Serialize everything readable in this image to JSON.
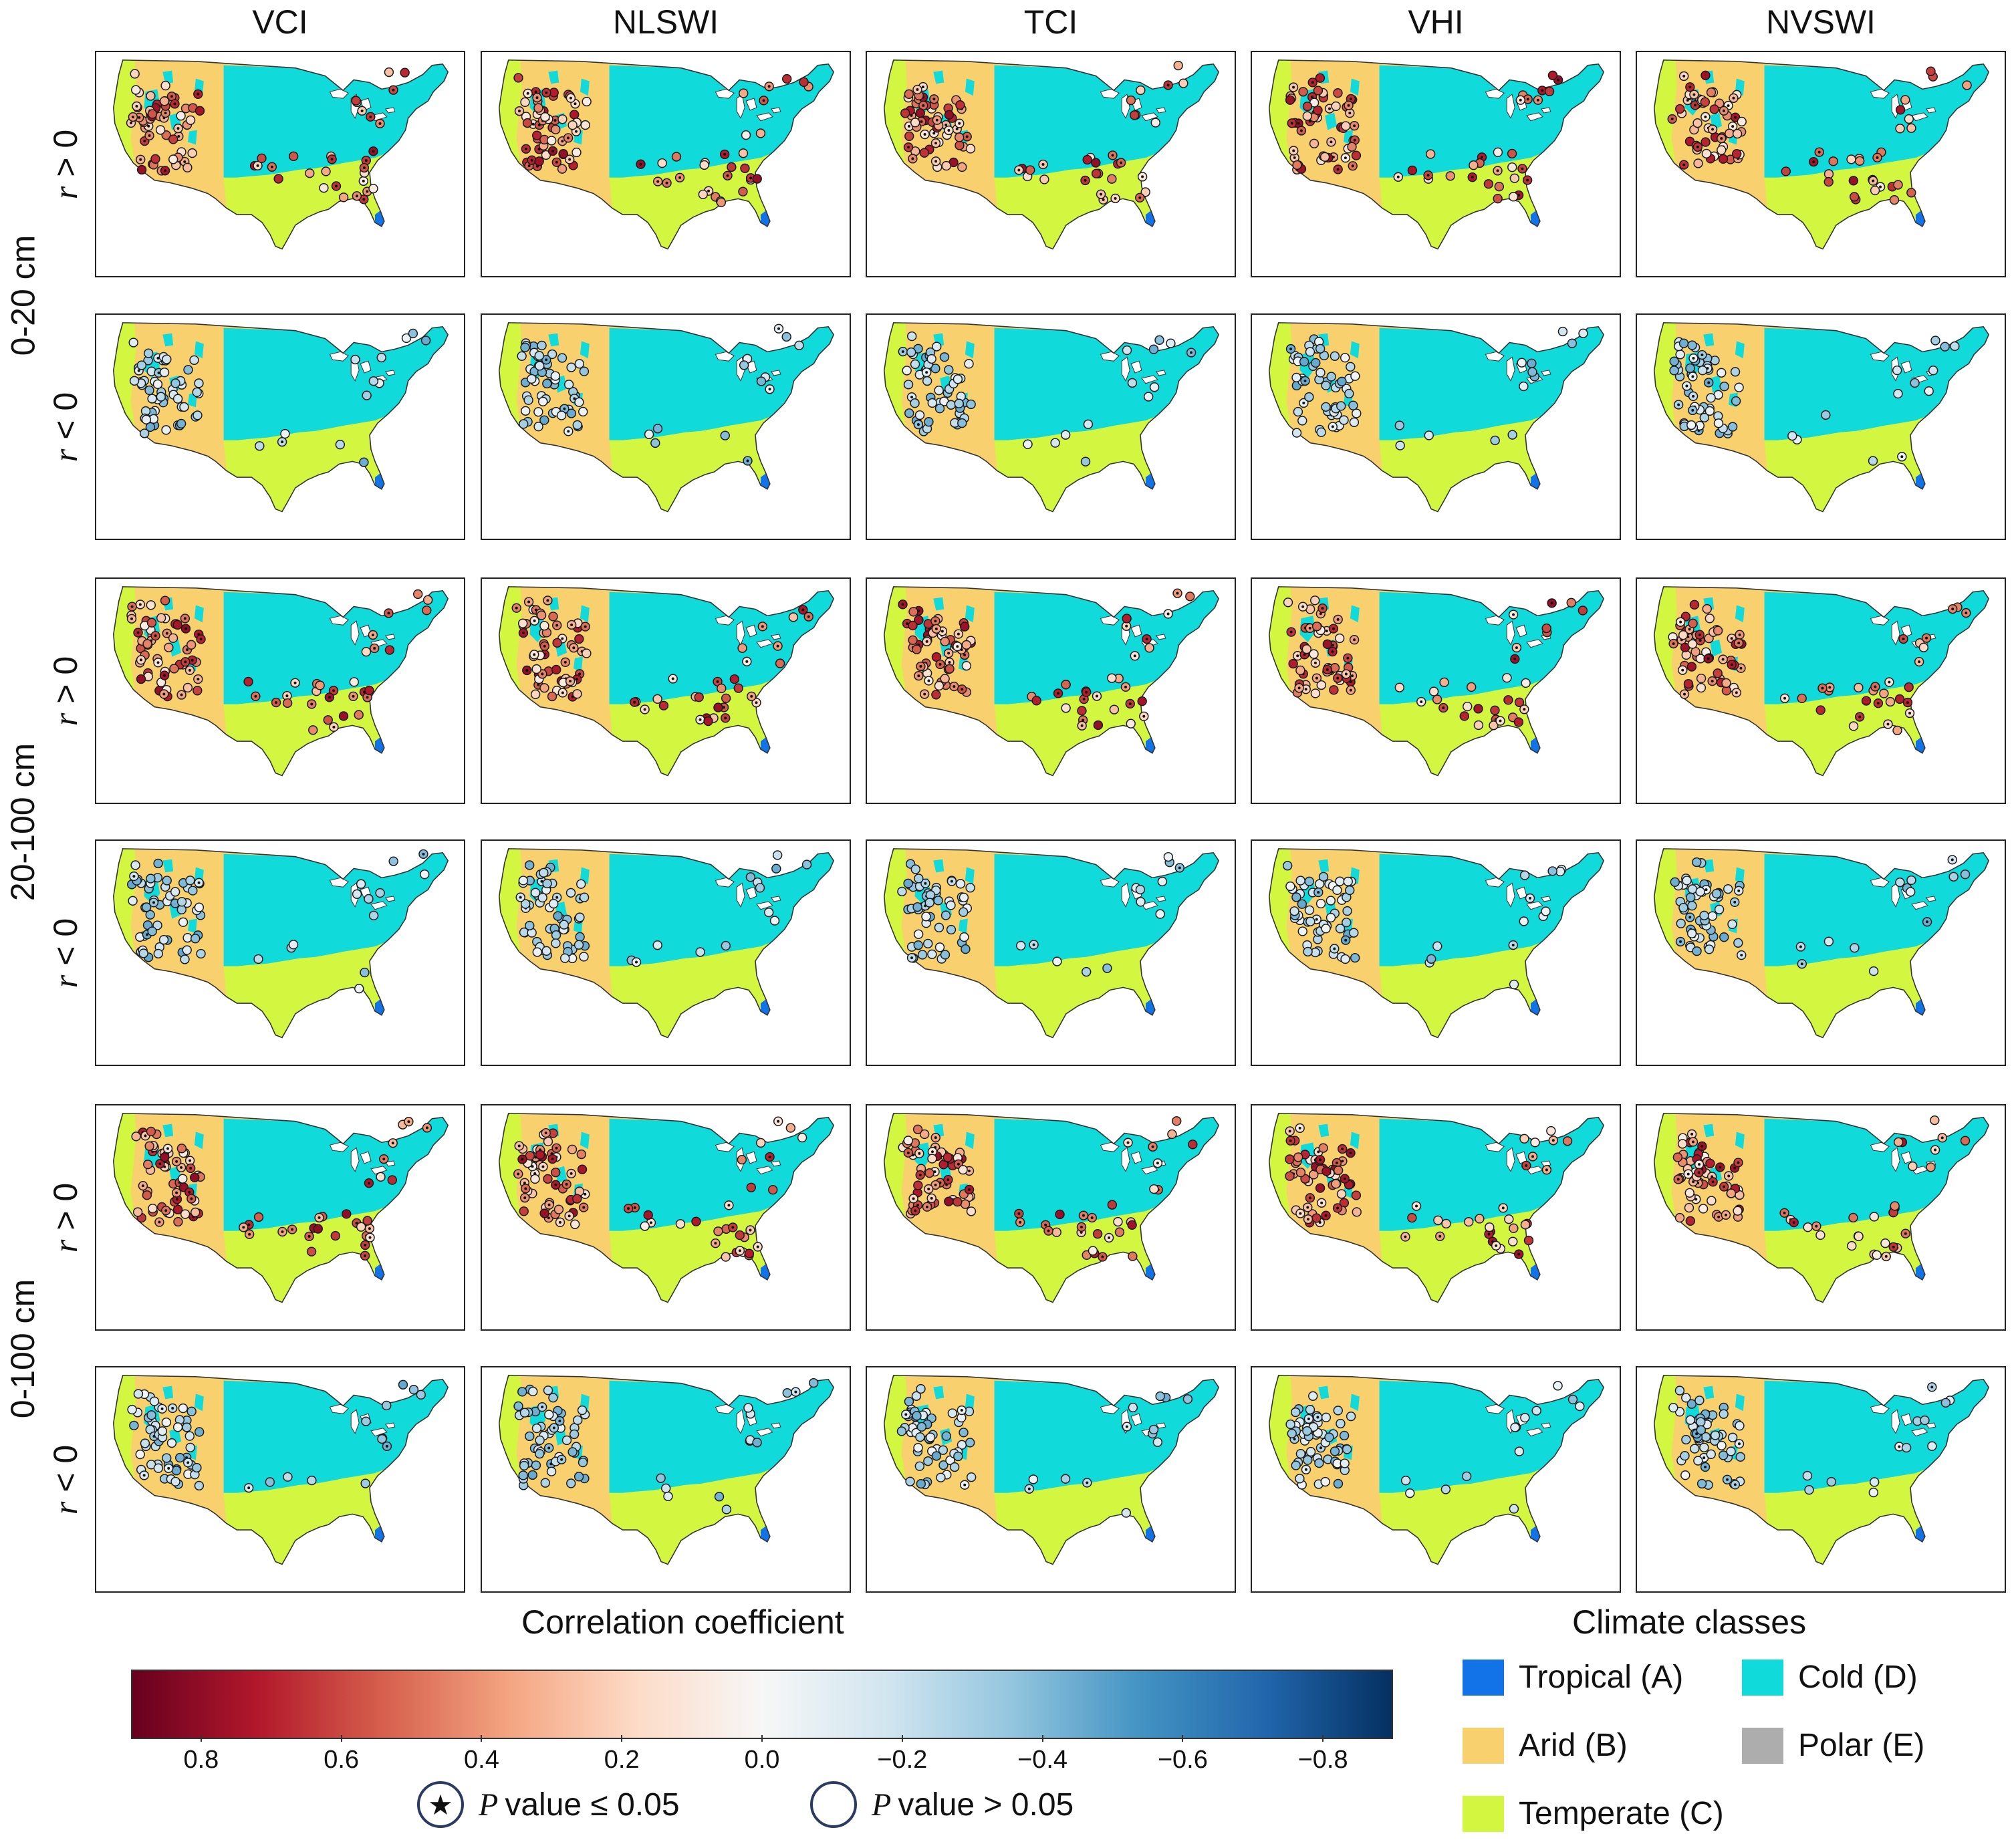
{
  "columns": [
    "VCI",
    "NLSWI",
    "TCI",
    "VHI",
    "NVSWI"
  ],
  "depths": [
    "0-20 cm",
    "20-100 cm",
    "0-100 cm"
  ],
  "rows": [
    {
      "depth": "0-20 cm",
      "r_symbol": "r",
      "relation": " > 0",
      "sign": "pos"
    },
    {
      "depth": "0-20 cm",
      "r_symbol": "r",
      "relation": " < 0",
      "sign": "neg"
    },
    {
      "depth": "20-100 cm",
      "r_symbol": "r",
      "relation": " > 0",
      "sign": "pos"
    },
    {
      "depth": "20-100 cm",
      "r_symbol": "r",
      "relation": " < 0",
      "sign": "neg"
    },
    {
      "depth": "0-100 cm",
      "r_symbol": "r",
      "relation": " > 0",
      "sign": "pos"
    },
    {
      "depth": "0-100 cm",
      "r_symbol": "r",
      "relation": " < 0",
      "sign": "neg"
    }
  ],
  "colorbar": {
    "title": "Correlation coefficient",
    "ticks": [
      "0.8",
      "0.6",
      "0.4",
      "0.2",
      "0.0",
      "−0.2",
      "−0.4",
      "−0.6",
      "−0.8"
    ],
    "tick_values": [
      0.8,
      0.6,
      0.4,
      0.2,
      0.0,
      -0.2,
      -0.4,
      -0.6,
      -0.8
    ],
    "range": [
      0.9,
      -0.9
    ],
    "colors": [
      "#67001f",
      "#b2182b",
      "#d6604d",
      "#f4a582",
      "#fddbc7",
      "#f7f7f7",
      "#d1e5f0",
      "#92c5de",
      "#4393c3",
      "#2166ac",
      "#053061"
    ]
  },
  "significance": {
    "significant": {
      "symbol": "★",
      "p": "P",
      "text": " value ≤ 0.05"
    },
    "nonsignificant": {
      "symbol": "",
      "p": "P",
      "text": " value  >  0.05"
    }
  },
  "climate_legend": {
    "title": "Climate classes",
    "classes": [
      {
        "label": "Tropical (A)",
        "color": "#1273e8"
      },
      {
        "label": "Cold (D)",
        "color": "#10dada"
      },
      {
        "label": "Arid (B)",
        "color": "#f9d06e"
      },
      {
        "label": "Polar (E)",
        "color": "#adadad"
      },
      {
        "label": "Temperate (C)",
        "color": "#d3f640"
      }
    ]
  }
}
